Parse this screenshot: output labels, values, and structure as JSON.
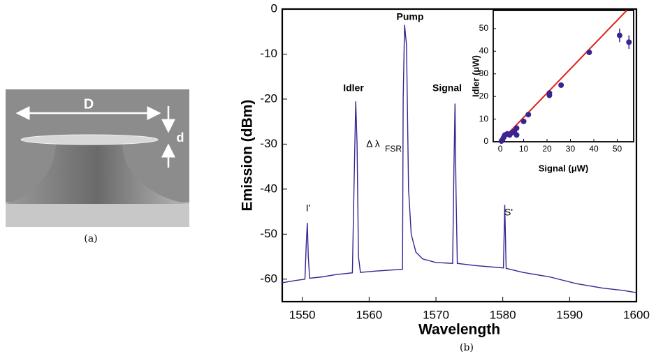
{
  "panel_a": {
    "label": "(a)",
    "diameter_label": "D",
    "thickness_label": "d"
  },
  "panel_b_label": "(b)",
  "chart_data": [
    {
      "type": "line",
      "xlabel": "Wavelength",
      "ylabel": "Emission (dBm)",
      "xlim": [
        1547,
        1600
      ],
      "ylim": [
        -65,
        0
      ],
      "xticks": [
        1550,
        1560,
        1570,
        1580,
        1590,
        1600
      ],
      "yticks": [
        0,
        -10,
        -20,
        -30,
        -40,
        -50,
        -60
      ],
      "annotations": [
        "Pump",
        "Idler",
        "Signal",
        "I'",
        "S'",
        "Δ λ",
        "FSR"
      ],
      "color": "#3b2391",
      "x": [
        1547,
        1549,
        1550.4,
        1550.6,
        1550.75,
        1550.9,
        1551.1,
        1553,
        1555,
        1557.5,
        1557.8,
        1558,
        1558.2,
        1558.4,
        1558.7,
        1561,
        1563,
        1565,
        1565.1,
        1565.3,
        1565.6,
        1565.9,
        1566.3,
        1567,
        1568,
        1570,
        1572.5,
        1572.7,
        1572.85,
        1573,
        1573.2,
        1576,
        1580.1,
        1580.3,
        1580.5,
        1583,
        1587,
        1591,
        1595,
        1598,
        1600
      ],
      "values": [
        -60.8,
        -60.3,
        -60,
        -52,
        -47.5,
        -55,
        -59.8,
        -59.5,
        -59,
        -58.6,
        -35,
        -20.5,
        -30,
        -55,
        -58.5,
        -58.2,
        -58,
        -57.8,
        -20,
        -3.5,
        -8,
        -40,
        -50,
        -54,
        -55.5,
        -56.3,
        -56.5,
        -35,
        -21,
        -40,
        -56.5,
        -57,
        -57.5,
        -43.5,
        -57.6,
        -58.5,
        -59.5,
        -61,
        -62,
        -62.5,
        -63
      ]
    },
    {
      "type": "scatter",
      "xlabel": "Signal (μW)",
      "ylabel": "Idler (μW)",
      "xlim": [
        -3,
        57
      ],
      "ylim": [
        0,
        58
      ],
      "xticks": [
        0,
        10,
        20,
        30,
        40,
        50
      ],
      "yticks": [
        0,
        10,
        20,
        30,
        40,
        50
      ],
      "color": "#3b2391",
      "x": [
        0.5,
        1,
        1.5,
        2,
        3,
        4,
        5,
        6,
        7,
        7,
        10,
        12,
        21,
        21,
        26,
        38,
        51,
        55
      ],
      "values": [
        0.3,
        1,
        2,
        3,
        3.5,
        3,
        4,
        4.5,
        6,
        3,
        9,
        12,
        20.5,
        21.5,
        25,
        39.5,
        47,
        44
      ],
      "errors": [
        null,
        null,
        null,
        null,
        null,
        null,
        null,
        null,
        null,
        null,
        null,
        null,
        null,
        null,
        null,
        null,
        3,
        3
      ],
      "fit": {
        "color": "#e0201b",
        "x": [
          0,
          54
        ],
        "values": [
          0,
          58
        ]
      }
    }
  ]
}
